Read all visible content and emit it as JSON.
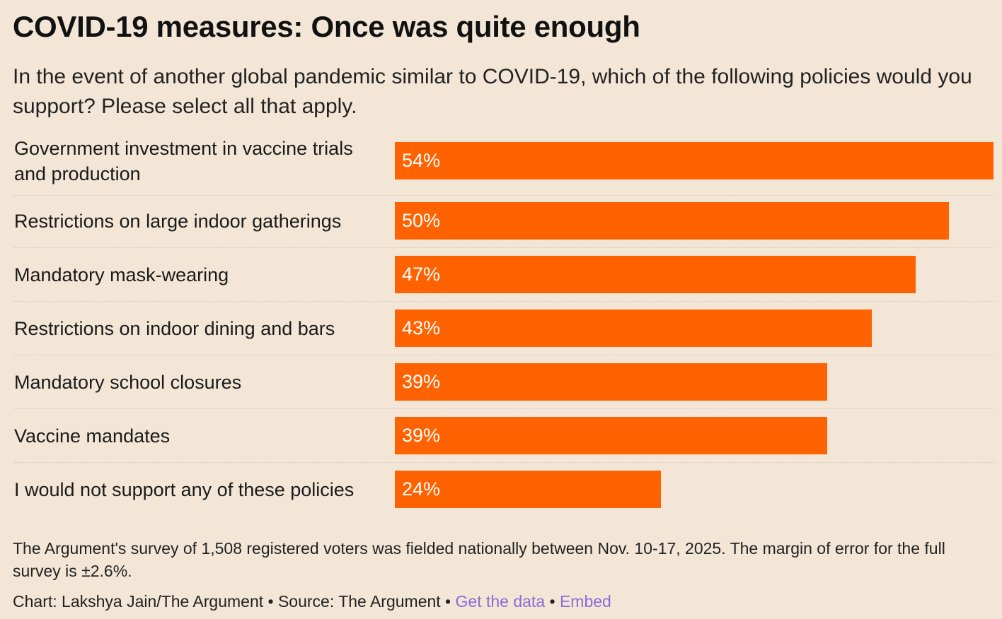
{
  "header": {
    "title": "COVID-19 measures: Once was quite enough",
    "subtitle": "In the event of another global pandemic similar to COVID-19, which of the following policies would you support? Please select all that apply."
  },
  "chart_data": {
    "type": "bar",
    "orientation": "horizontal",
    "categories": [
      "Government investment in vaccine trials and production",
      "Restrictions on large indoor gatherings",
      "Mandatory mask-wearing",
      "Restrictions on indoor dining and bars",
      "Mandatory school closures",
      "Vaccine mandates",
      "I would not support any of these policies"
    ],
    "values": [
      54,
      50,
      47,
      43,
      39,
      39,
      24
    ],
    "value_labels": [
      "54%",
      "50%",
      "47%",
      "43%",
      "39%",
      "39%",
      "24%"
    ],
    "xlim": [
      0,
      54
    ],
    "bar_color": "#ff6200",
    "grid": false,
    "legend": "none"
  },
  "footer": {
    "note": "The Argument's survey of 1,508 registered voters was fielded nationally between Nov. 10-17, 2025. The margin of error for the full survey is ±2.6%.",
    "credit": "Chart: Lakshya Jain/The Argument • Source: The Argument • ",
    "get_data_link": "Get the data",
    "separator": " • ",
    "embed_link": "Embed"
  },
  "colors": {
    "background": "#f3e6d6",
    "bar": "#ff6200",
    "link": "#8e6ad6"
  }
}
